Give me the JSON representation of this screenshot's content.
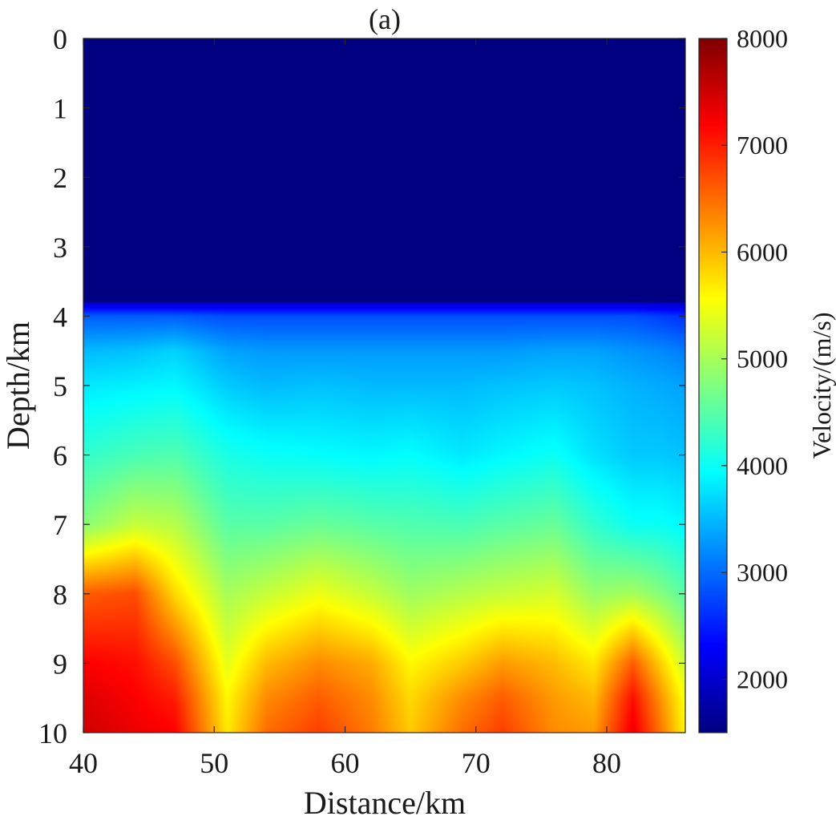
{
  "chart_data": {
    "type": "heatmap",
    "title": "(a)",
    "xlabel": "Distance/km",
    "ylabel": "Depth/km",
    "colorbar_label": "Velocity/(m/s)",
    "colormap": "jet",
    "xlim": [
      40,
      86
    ],
    "ylim": [
      0,
      10
    ],
    "y_reversed": true,
    "clim": [
      1500,
      8000
    ],
    "x_ticks": [
      40,
      50,
      60,
      70,
      80
    ],
    "x_tick_labels": [
      "40",
      "50",
      "60",
      "70",
      "80"
    ],
    "y_ticks": [
      0,
      1,
      2,
      3,
      4,
      5,
      6,
      7,
      8,
      9,
      10
    ],
    "y_tick_labels": [
      "0",
      "1",
      "2",
      "3",
      "4",
      "5",
      "6",
      "7",
      "8",
      "9",
      "10"
    ],
    "colorbar_ticks": [
      2000,
      3000,
      4000,
      5000,
      6000,
      7000,
      8000
    ],
    "colorbar_tick_labels": [
      "2000",
      "3000",
      "4000",
      "5000",
      "6000",
      "7000",
      "8000"
    ],
    "water_layer": {
      "depth_km": 3.8,
      "velocity": 1500
    },
    "velocity_profiles": {
      "depths_km": [
        3.8,
        4.0,
        4.5,
        5.0,
        6.0,
        7.0,
        8.0,
        9.0,
        9.5,
        10.0
      ],
      "columns": [
        {
          "x": 40,
          "velocities": [
            1900,
            2900,
            3500,
            3800,
            4250,
            4800,
            6600,
            7200,
            7400,
            7500
          ]
        },
        {
          "x": 44,
          "velocities": [
            1900,
            2900,
            3550,
            3850,
            4400,
            5200,
            6700,
            7100,
            7200,
            7300
          ]
        },
        {
          "x": 47,
          "velocities": [
            1900,
            2900,
            3650,
            3900,
            4450,
            5100,
            5800,
            6700,
            7000,
            7200
          ]
        },
        {
          "x": 51,
          "velocities": [
            1900,
            2800,
            3350,
            3600,
            4100,
            4500,
            5000,
            5400,
            5600,
            5700
          ]
        },
        {
          "x": 54,
          "velocities": [
            1900,
            2800,
            3300,
            3500,
            4000,
            4500,
            5200,
            6000,
            6300,
            6500
          ]
        },
        {
          "x": 58,
          "velocities": [
            1900,
            2800,
            3300,
            3550,
            3950,
            4600,
            5450,
            6300,
            6600,
            6800
          ]
        },
        {
          "x": 62,
          "velocities": [
            1900,
            2800,
            3300,
            3500,
            3900,
            4500,
            5200,
            6100,
            6300,
            6400
          ]
        },
        {
          "x": 65,
          "velocities": [
            1900,
            2800,
            3300,
            3500,
            3950,
            4450,
            4950,
            5600,
            5800,
            5900
          ]
        },
        {
          "x": 69,
          "velocities": [
            1900,
            2800,
            3300,
            3500,
            3800,
            4400,
            5100,
            5900,
            6300,
            6500
          ]
        },
        {
          "x": 72,
          "velocities": [
            1900,
            2800,
            3300,
            3550,
            3900,
            4500,
            5200,
            6200,
            6600,
            6800
          ]
        },
        {
          "x": 76,
          "velocities": [
            1900,
            2800,
            3350,
            3600,
            4000,
            4600,
            5300,
            6000,
            6200,
            6300
          ]
        },
        {
          "x": 79,
          "velocities": [
            1900,
            2800,
            3350,
            3550,
            3750,
            4250,
            4900,
            5700,
            6000,
            6200
          ]
        },
        {
          "x": 82,
          "velocities": [
            1900,
            2800,
            3250,
            3450,
            3600,
            4000,
            5000,
            6600,
            7100,
            7300
          ]
        },
        {
          "x": 84,
          "velocities": [
            1900,
            2700,
            3200,
            3400,
            3600,
            4000,
            4800,
            5900,
            6300,
            6500
          ]
        },
        {
          "x": 86,
          "velocities": [
            1900,
            2600,
            3100,
            3350,
            3550,
            3900,
            4500,
            5200,
            5500,
            5600
          ]
        }
      ]
    }
  }
}
